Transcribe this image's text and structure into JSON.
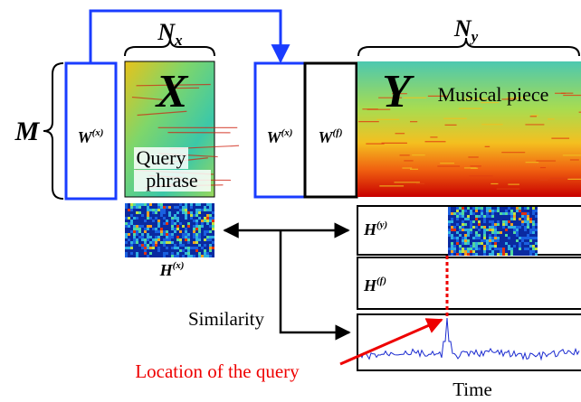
{
  "labels": {
    "n_x": {
      "base": "N",
      "sub": "x"
    },
    "n_y": {
      "base": "N",
      "sub": "y"
    },
    "m": "M",
    "x": "X",
    "y": "Y",
    "w_x_left": {
      "base": "W",
      "sup": "(x)"
    },
    "w_x_mid": {
      "base": "W",
      "sup": "(x)"
    },
    "w_f": {
      "base": "W",
      "sup": "(f)"
    },
    "h_x": {
      "base": "H",
      "sup": "(x)"
    },
    "h_y": {
      "base": "H",
      "sup": "(y)"
    },
    "h_f": {
      "base": "H",
      "sup": "(f)"
    }
  },
  "query_phrase": [
    "Query",
    "phrase"
  ],
  "musical_piece": "Musical piece",
  "similarity": "Similarity",
  "location": "Location of the query",
  "time": "Time"
}
